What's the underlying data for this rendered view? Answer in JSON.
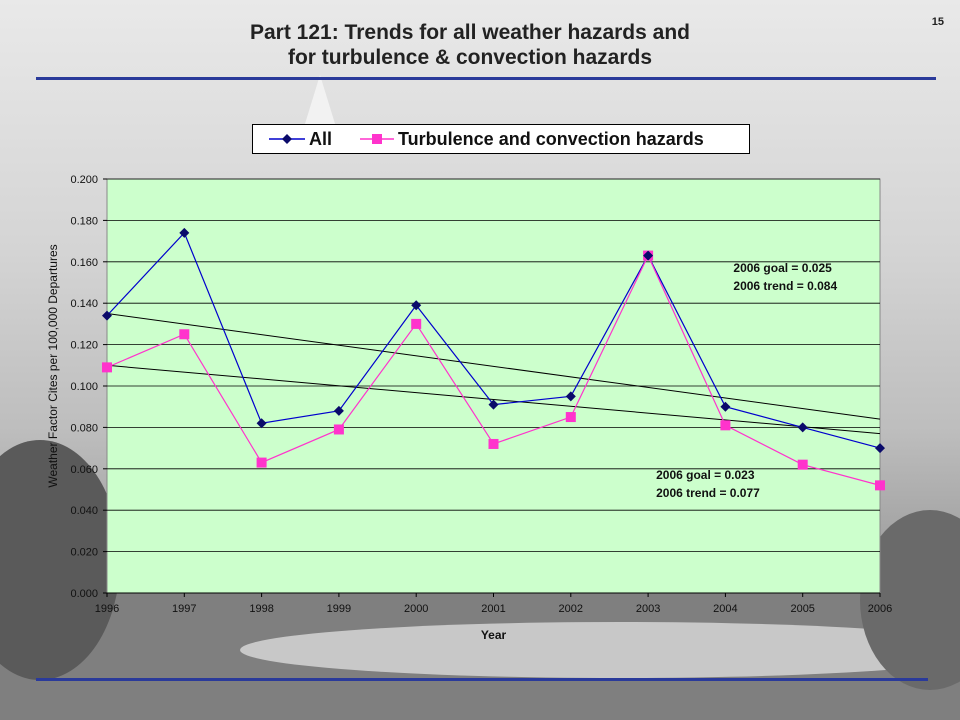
{
  "page_number": "15",
  "title": {
    "line1": "Part 121: Trends for all weather hazards and",
    "line2": "for turbulence & convection hazards"
  },
  "colors": {
    "accent_rule": "#2a3a9a",
    "plot_background": "#ccffcc",
    "series_all": "#0000cc",
    "series_turbulence": "#ff33cc"
  },
  "chart_data": {
    "type": "line",
    "title": "",
    "xlabel": "Year",
    "ylabel": "Weather Factor Cites per 100,000 Departures",
    "ylim": [
      0,
      0.2
    ],
    "ytick_labels": [
      "0.000",
      "0.020",
      "0.040",
      "0.060",
      "0.080",
      "0.100",
      "0.120",
      "0.140",
      "0.160",
      "0.180",
      "0.200"
    ],
    "categories": [
      "1996",
      "1997",
      "1998",
      "1999",
      "2000",
      "2001",
      "2002",
      "2003",
      "2004",
      "2005",
      "2006"
    ],
    "grid": "horizontal",
    "legend_position": "top",
    "series": [
      {
        "name": "All",
        "marker": "diamond",
        "values": [
          0.134,
          0.174,
          0.082,
          0.088,
          0.139,
          0.091,
          0.095,
          0.163,
          0.09,
          0.08,
          0.07
        ],
        "trend": [
          0.135,
          0.084
        ]
      },
      {
        "name": "Turbulence and convection hazards",
        "marker": "square",
        "values": [
          0.109,
          0.125,
          0.063,
          0.079,
          0.13,
          0.072,
          0.085,
          0.163,
          0.081,
          0.062,
          0.052
        ],
        "trend": [
          0.11,
          0.077
        ]
      }
    ],
    "annotations": [
      {
        "lines": [
          "2006 goal = 0.025",
          "2006 trend = 0.084"
        ],
        "x": "2004",
        "y": 0.155
      },
      {
        "lines": [
          "2006 goal = 0.023",
          "2006 trend = 0.077"
        ],
        "x": "2003",
        "y": 0.055
      }
    ]
  }
}
